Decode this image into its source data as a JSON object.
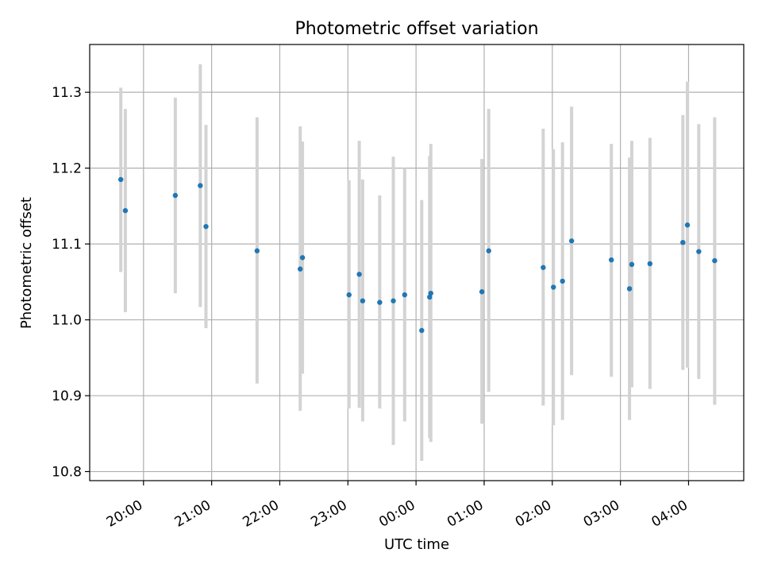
{
  "chart_data": {
    "type": "scatter",
    "title": "Photometric offset variation",
    "xlabel": "UTC time",
    "ylabel": "Photometric offset",
    "x_tick_labels": [
      "20:00",
      "21:00",
      "22:00",
      "23:00",
      "00:00",
      "01:00",
      "02:00",
      "03:00",
      "04:00"
    ],
    "y_tick_labels": [
      "10.8",
      "10.9",
      "11.0",
      "11.1",
      "11.2",
      "11.3"
    ],
    "x_tick_hours": [
      20,
      21,
      22,
      23,
      24,
      25,
      26,
      27,
      28
    ],
    "y_tick_values": [
      10.8,
      10.9,
      11.0,
      11.1,
      11.2,
      11.3
    ],
    "xlim_hours": [
      19.21,
      28.81
    ],
    "ylim": [
      10.788,
      11.363
    ],
    "grid": true,
    "colors": {
      "marker": "#1f77b4",
      "errorbar": "#d3d3d3",
      "grid": "#b0b0b0"
    },
    "points": [
      {
        "t": "19:40",
        "y": 11.185,
        "lo": 11.063,
        "hi": 11.306
      },
      {
        "t": "19:44",
        "y": 11.144,
        "lo": 11.01,
        "hi": 11.278
      },
      {
        "t": "20:28",
        "y": 11.164,
        "lo": 11.035,
        "hi": 11.293
      },
      {
        "t": "20:50",
        "y": 11.177,
        "lo": 11.017,
        "hi": 11.337
      },
      {
        "t": "20:55",
        "y": 11.123,
        "lo": 10.989,
        "hi": 11.257
      },
      {
        "t": "21:40",
        "y": 11.091,
        "lo": 10.916,
        "hi": 11.267
      },
      {
        "t": "22:18",
        "y": 11.067,
        "lo": 10.88,
        "hi": 11.255
      },
      {
        "t": "22:20",
        "y": 11.082,
        "lo": 10.929,
        "hi": 11.235
      },
      {
        "t": "23:01",
        "y": 11.033,
        "lo": 10.883,
        "hi": 11.184
      },
      {
        "t": "23:10",
        "y": 11.06,
        "lo": 10.884,
        "hi": 11.236
      },
      {
        "t": "23:13",
        "y": 11.025,
        "lo": 10.866,
        "hi": 11.185
      },
      {
        "t": "23:28",
        "y": 11.023,
        "lo": 10.883,
        "hi": 11.164
      },
      {
        "t": "23:40",
        "y": 11.025,
        "lo": 10.835,
        "hi": 11.215
      },
      {
        "t": "23:50",
        "y": 11.033,
        "lo": 10.866,
        "hi": 11.2
      },
      {
        "t": "00:05",
        "y": 10.986,
        "lo": 10.814,
        "hi": 11.158
      },
      {
        "t": "00:12",
        "y": 11.03,
        "lo": 10.844,
        "hi": 11.216
      },
      {
        "t": "00:13",
        "y": 11.035,
        "lo": 10.839,
        "hi": 11.232
      },
      {
        "t": "00:58",
        "y": 11.037,
        "lo": 10.863,
        "hi": 11.212
      },
      {
        "t": "01:04",
        "y": 11.091,
        "lo": 10.905,
        "hi": 11.278
      },
      {
        "t": "01:52",
        "y": 11.069,
        "lo": 10.887,
        "hi": 11.252
      },
      {
        "t": "02:01",
        "y": 11.043,
        "lo": 10.861,
        "hi": 11.225
      },
      {
        "t": "02:09",
        "y": 11.051,
        "lo": 10.868,
        "hi": 11.234
      },
      {
        "t": "02:17",
        "y": 11.104,
        "lo": 10.927,
        "hi": 11.281
      },
      {
        "t": "02:52",
        "y": 11.079,
        "lo": 10.925,
        "hi": 11.232
      },
      {
        "t": "03:08",
        "y": 11.041,
        "lo": 10.868,
        "hi": 11.214
      },
      {
        "t": "03:10",
        "y": 11.073,
        "lo": 10.911,
        "hi": 11.236
      },
      {
        "t": "03:26",
        "y": 11.074,
        "lo": 10.909,
        "hi": 11.24
      },
      {
        "t": "03:55",
        "y": 11.102,
        "lo": 10.934,
        "hi": 11.27
      },
      {
        "t": "03:59",
        "y": 11.125,
        "lo": 10.937,
        "hi": 11.314
      },
      {
        "t": "04:09",
        "y": 11.09,
        "lo": 10.922,
        "hi": 11.258
      },
      {
        "t": "04:23",
        "y": 11.078,
        "lo": 10.888,
        "hi": 11.267
      }
    ]
  }
}
